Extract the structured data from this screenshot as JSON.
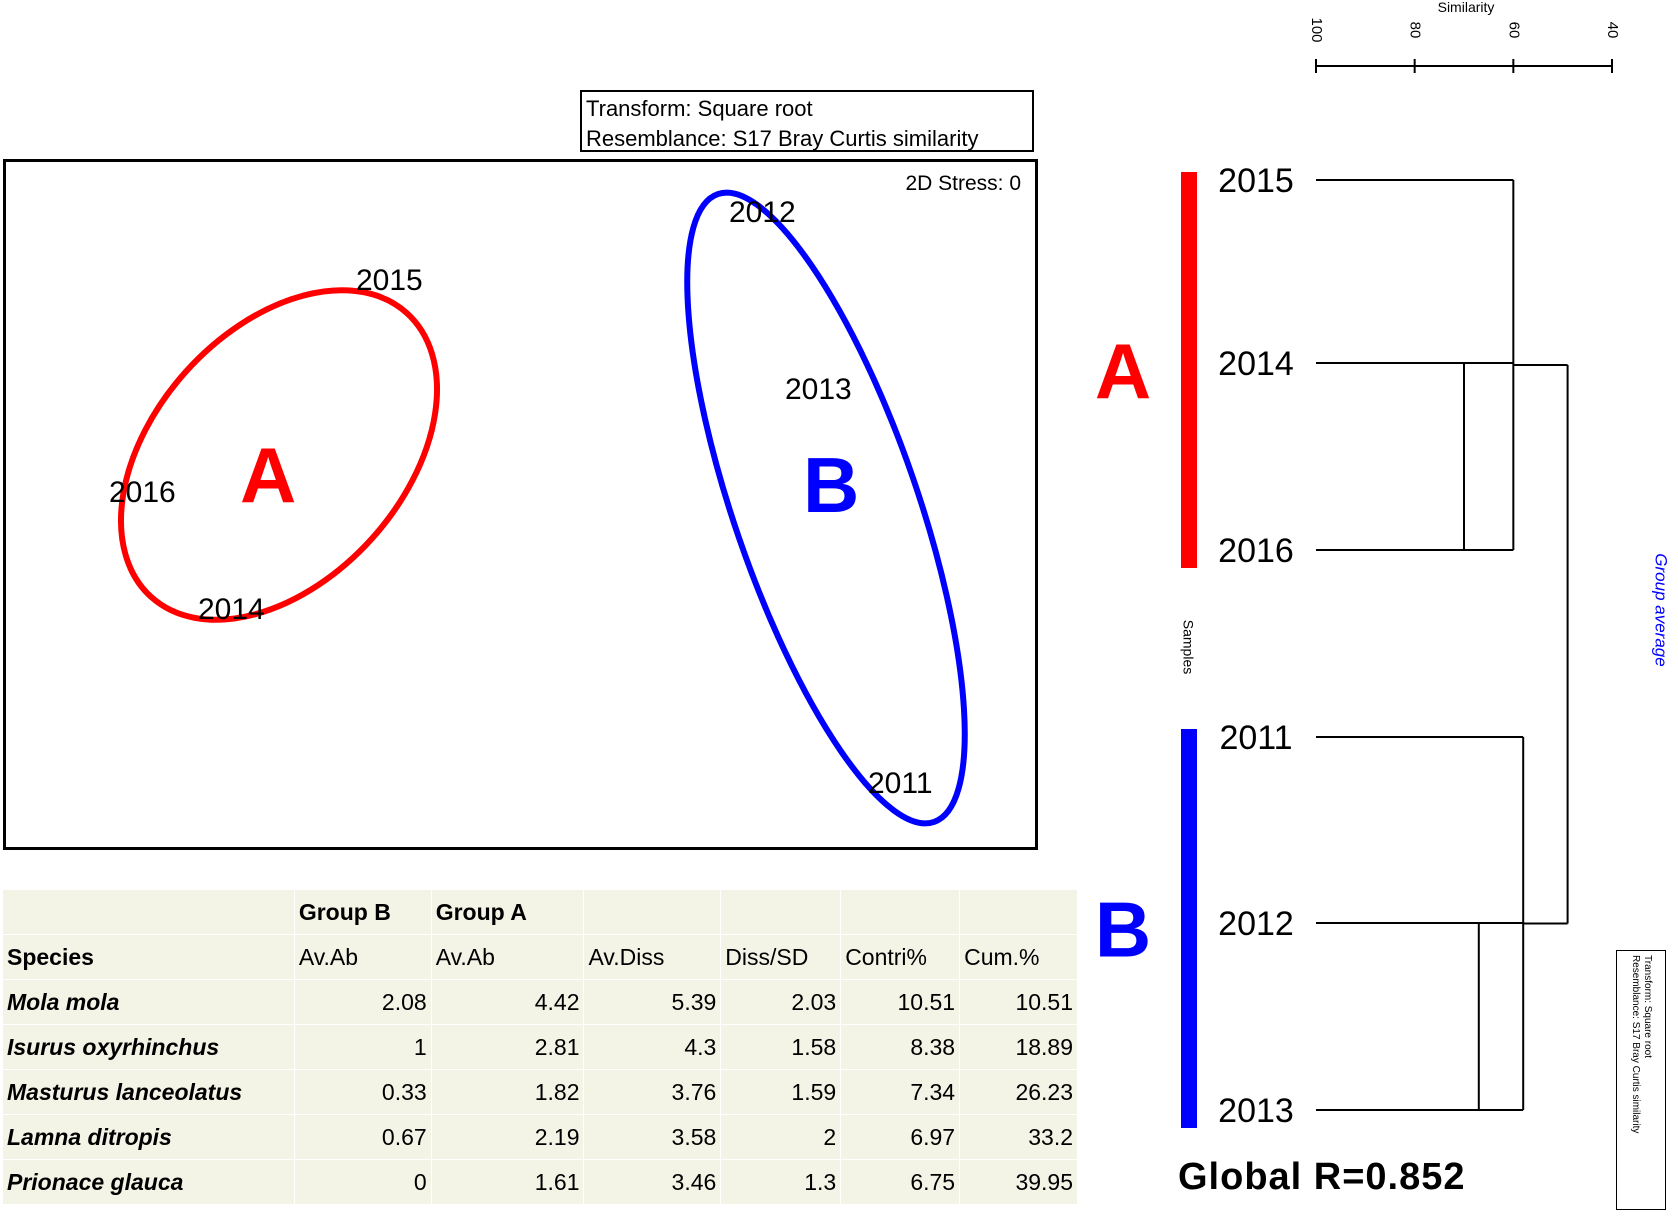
{
  "nmds": {
    "transform_label": "Transform: Square root",
    "resemblance_label": "Resemblance: S17 Bray Curtis similarity",
    "stress_label": "2D Stress: 0",
    "points": [
      {
        "label": "2012",
        "group": "B"
      },
      {
        "label": "2015",
        "group": "A"
      },
      {
        "label": "2013",
        "group": "B"
      },
      {
        "label": "2016",
        "group": "A"
      },
      {
        "label": "2014",
        "group": "A"
      },
      {
        "label": "2011",
        "group": "B"
      }
    ],
    "groups": [
      {
        "name": "A",
        "color": "#ff0000"
      },
      {
        "name": "B",
        "color": "#0000ff"
      }
    ]
  },
  "simper": {
    "group_headers": [
      "Group B",
      "Group A"
    ],
    "columns": [
      "Species",
      "Av.Ab",
      "Av.Ab",
      "Av.Diss",
      "Diss/SD",
      "Contri%",
      "Cum.%"
    ],
    "rows": [
      {
        "species": "Mola mola",
        "b_av": "2.08",
        "a_av": "4.42",
        "av_diss": "5.39",
        "diss_sd": "2.03",
        "contri": "10.51",
        "cum": "10.51"
      },
      {
        "species": "Isurus oxyrhinchus",
        "b_av": "1",
        "a_av": "2.81",
        "av_diss": "4.3",
        "diss_sd": "1.58",
        "contri": "8.38",
        "cum": "18.89"
      },
      {
        "species": "Masturus lanceolatus",
        "b_av": "0.33",
        "a_av": "1.82",
        "av_diss": "3.76",
        "diss_sd": "1.59",
        "contri": "7.34",
        "cum": "26.23"
      },
      {
        "species": "Lamna ditropis",
        "b_av": "0.67",
        "a_av": "2.19",
        "av_diss": "3.58",
        "diss_sd": "2",
        "contri": "6.97",
        "cum": "33.2"
      },
      {
        "species": "Prionace glauca",
        "b_av": "0",
        "a_av": "1.61",
        "av_diss": "3.46",
        "diss_sd": "1.3",
        "contri": "6.75",
        "cum": "39.95"
      }
    ]
  },
  "chart_data": {
    "type": "dendrogram",
    "axis_title": "Similarity",
    "axis_ticks": [
      100,
      80,
      60,
      40
    ],
    "xlim": [
      100,
      40
    ],
    "samples_label": "Samples",
    "method_label": "Group average",
    "leaves": [
      "2015",
      "2014",
      "2016",
      "2011",
      "2012",
      "2013"
    ],
    "merges": [
      {
        "members": [
          "2014",
          "2016"
        ],
        "similarity": 70
      },
      {
        "members": [
          "2015",
          "2014",
          "2016"
        ],
        "similarity": 60
      },
      {
        "members": [
          "2012",
          "2013"
        ],
        "similarity": 67
      },
      {
        "members": [
          "2011",
          "2012",
          "2013"
        ],
        "similarity": 58
      },
      {
        "members": [
          "A",
          "B"
        ],
        "similarity": 49
      }
    ],
    "groups": [
      {
        "name": "A",
        "members": [
          "2015",
          "2014",
          "2016"
        ],
        "color": "#ff0000"
      },
      {
        "name": "B",
        "members": [
          "2011",
          "2012",
          "2013"
        ],
        "color": "#0000ff"
      }
    ],
    "legend_transform": "Transform: Square root",
    "legend_resemblance": "Resemblance: S17 Bray Curtis similarity",
    "global_r_label": "Global  R=0.852"
  }
}
